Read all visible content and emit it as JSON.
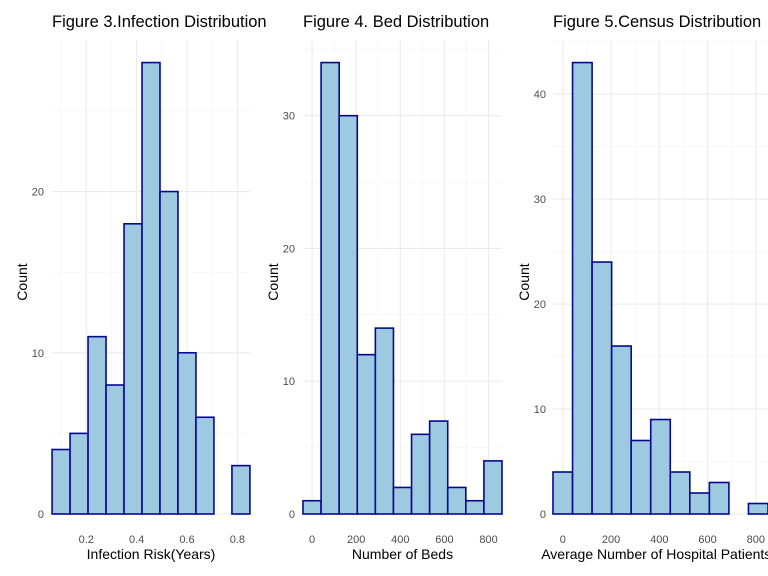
{
  "chart_data": [
    {
      "type": "bar",
      "title": "Figure 3.Infection Distribution",
      "xlabel": "Infection Risk(Years)",
      "ylabel": "Count",
      "grid": true,
      "legend": "none",
      "bin_width": 0.0714,
      "bin_start": 0.0643,
      "values": [
        4,
        5,
        11,
        8,
        18,
        28,
        20,
        10,
        6,
        0,
        3
      ],
      "xlim": [
        0.064,
        0.85
      ],
      "ylim": [
        0,
        29.4
      ],
      "xticks": [
        0.2,
        0.4,
        0.6,
        0.8
      ],
      "xtick_labels": [
        "0.2",
        "0.4",
        "0.6",
        "0.8"
      ],
      "yticks": [
        0,
        10,
        20
      ],
      "ytick_labels": [
        "0",
        "10",
        "20"
      ]
    },
    {
      "type": "bar",
      "title": "Figure 4. Bed Distribution",
      "xlabel": "Number of Beds",
      "ylabel": "Count",
      "grid": true,
      "legend": "none",
      "bin_width": 82,
      "bin_start": -41,
      "values": [
        1,
        34,
        30,
        12,
        14,
        2,
        6,
        7,
        2,
        1,
        4
      ],
      "xlim": [
        -41,
        861
      ],
      "ylim": [
        0,
        35.7
      ],
      "xticks": [
        0,
        200,
        400,
        600,
        800
      ],
      "xtick_labels": [
        "0",
        "200",
        "400",
        "600",
        "800"
      ],
      "yticks": [
        0,
        10,
        20,
        30
      ],
      "ytick_labels": [
        "0",
        "10",
        "20",
        "30"
      ]
    },
    {
      "type": "bar",
      "title": "Figure 5.Census Distribution",
      "xlabel": "Average Number of Hospital Patients Per Day",
      "ylabel": "Count",
      "grid": true,
      "legend": "none",
      "bin_width": 81,
      "bin_start": -40.5,
      "values": [
        4,
        43,
        24,
        16,
        7,
        9,
        4,
        2,
        3,
        0,
        1
      ],
      "xlim": [
        -40.5,
        850.5
      ],
      "ylim": [
        0,
        45.15
      ],
      "xticks": [
        0,
        200,
        400,
        600,
        800
      ],
      "xtick_labels": [
        "0",
        "200",
        "400",
        "600",
        "800"
      ],
      "yticks": [
        0,
        10,
        20,
        30,
        40
      ],
      "ytick_labels": [
        "0",
        "10",
        "20",
        "30",
        "40"
      ]
    }
  ]
}
